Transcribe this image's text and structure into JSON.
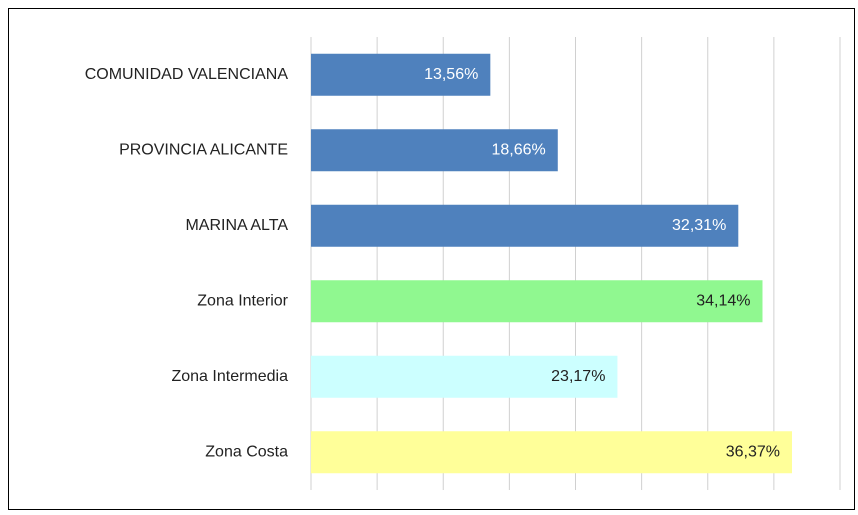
{
  "chart_data": {
    "type": "bar",
    "orientation": "horizontal",
    "categories": [
      "COMUNIDAD VALENCIANA",
      "PROVINCIA ALICANTE",
      "MARINA ALTA",
      "Zona Interior",
      "Zona Intermedia",
      "Zona Costa"
    ],
    "values": [
      13.56,
      18.66,
      32.31,
      34.14,
      23.17,
      36.37
    ],
    "value_labels": [
      "13,56%",
      "18,66%",
      "32,31%",
      "34,14%",
      "23,17%",
      "36,37%"
    ],
    "colors": [
      "#4f81bd",
      "#4f81bd",
      "#4f81bd",
      "#90f890",
      "#ccffff",
      "#ffff99"
    ],
    "xlim": [
      0,
      40
    ],
    "xticks": [
      0,
      5,
      10,
      15,
      20,
      25,
      30,
      35,
      40
    ],
    "grid": true
  }
}
